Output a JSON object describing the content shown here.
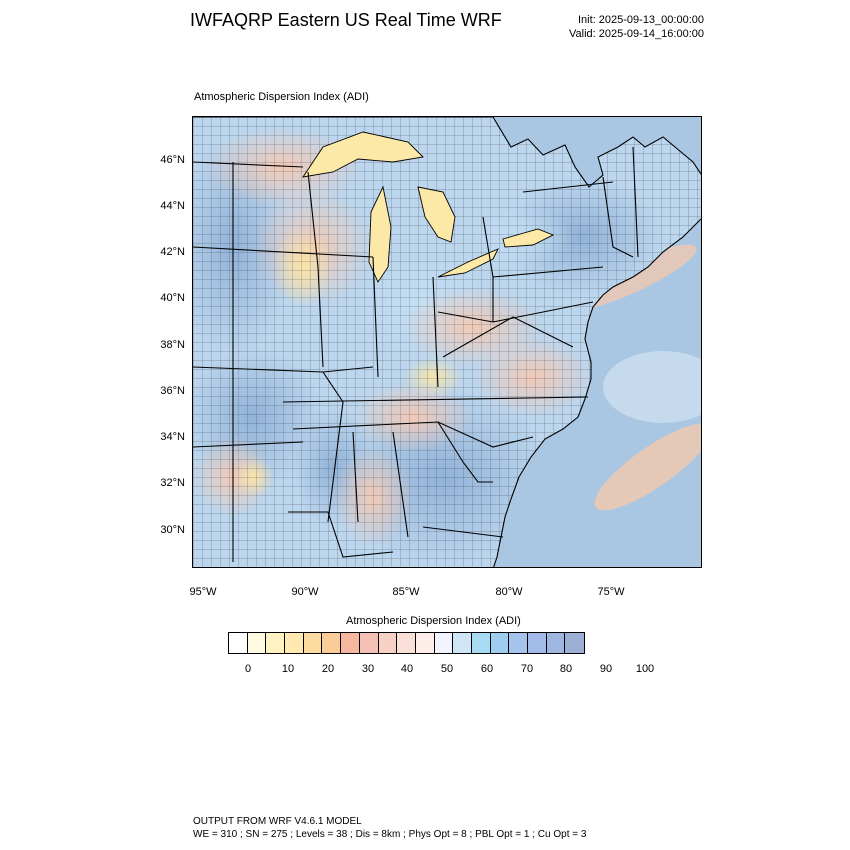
{
  "header": {
    "title": "IWFAQRP Eastern US Real Time WRF",
    "init": "Init: 2025-09-13_00:00:00",
    "valid": "Valid: 2025-09-14_16:00:00"
  },
  "map": {
    "subtitle": "Atmospheric Dispersion Index   (ADI)",
    "lat_labels": [
      "46°N",
      "44°N",
      "42°N",
      "40°N",
      "38°N",
      "36°N",
      "34°N",
      "32°N",
      "30°N"
    ],
    "lon_labels": [
      "95°W",
      "90°W",
      "85°W",
      "80°W",
      "75°W"
    ],
    "colors": {
      "ocean": "#a9c6e2",
      "land_high": "#9fb8d8",
      "land_mid": "#bcd6ee",
      "land_low": "#f7d4c0",
      "lake": "#fce9a8",
      "border": "#000000"
    }
  },
  "colorbar": {
    "title": "Atmospheric Dispersion Index (ADI)",
    "colors": [
      "#ffffff",
      "#fffbe0",
      "#fff3c3",
      "#ffe9b0",
      "#fcdca0",
      "#f9cc98",
      "#f5b7a0",
      "#f4c1b6",
      "#f7d0c6",
      "#fbe0d8",
      "#fdeeea",
      "#f2f4ff",
      "#cfe6f7",
      "#a7dbf3",
      "#9fcdef",
      "#a6c3ee",
      "#a3bbe8",
      "#9fb6e1",
      "#9cb0d6"
    ],
    "labels": [
      "0",
      "10",
      "20",
      "30",
      "40",
      "50",
      "60",
      "70",
      "80",
      "90",
      "100"
    ]
  },
  "footer": {
    "line1": "OUTPUT FROM WRF V4.6.1 MODEL",
    "line2": "WE = 310 ; SN = 275 ; Levels = 38 ; Dis = 8km ; Phys Opt = 8 ; PBL Opt = 1 ; Cu Opt = 3"
  }
}
